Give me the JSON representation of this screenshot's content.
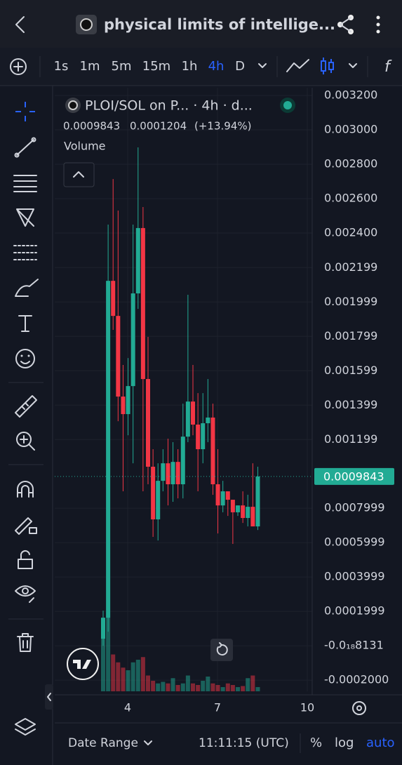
{
  "ui": {
    "title": "physical limits of intellige...",
    "timeframes": [
      "1s",
      "1m",
      "5m",
      "15m",
      "1h",
      "4h",
      "D"
    ],
    "active_timeframe_index": 5,
    "fx": "f",
    "date_range": "Date Range",
    "clock": "11:11:15 (UTC)",
    "percent": "%",
    "log": "log",
    "auto": "auto"
  },
  "chart_data": {
    "type": "candlestick",
    "symbol": "PLOI/SOL on P... · 4h · d...",
    "last_price": 0.0009843,
    "change": 0.0001204,
    "change_label": "(+13.94%)",
    "volume_label": "Volume",
    "up_color": "#22ab94",
    "down_color": "#f23645",
    "x": [
      3.18,
      3.347,
      3.513,
      3.68,
      3.847,
      4.013,
      4.18,
      4.347,
      4.513,
      4.68,
      4.847,
      5.013,
      5.18,
      5.347,
      5.513,
      5.68,
      5.847,
      6.013,
      6.18,
      6.347,
      6.513,
      6.68,
      6.847,
      7.013,
      7.18,
      7.347,
      7.513,
      7.68,
      7.847,
      8.013,
      8.18,
      8.347
    ],
    "open": [
      4.1e-05,
      0.000163,
      0.002122,
      0.001918,
      0.001449,
      0.001347,
      0.00151,
      0.002049,
      0.002429,
      0.001551,
      0.001041,
      0.000735,
      0.000959,
      0.001061,
      0.000939,
      0.001069,
      0.000939,
      0.001216,
      0.00142,
      0.001286,
      0.001143,
      0.001294,
      0.001327,
      0.000939,
      0.000816,
      0.000898,
      0.000849,
      0.000776,
      0.000816,
      0.000743,
      0.000808,
      0.000694
    ],
    "close": [
      0.000163,
      0.002122,
      0.001918,
      0.001449,
      0.001347,
      0.00151,
      0.002049,
      0.002429,
      0.001551,
      0.001041,
      0.000735,
      0.000959,
      0.001061,
      0.000939,
      0.001069,
      0.000939,
      0.001216,
      0.00142,
      0.001286,
      0.001143,
      0.001294,
      0.001327,
      0.000939,
      0.000816,
      0.000898,
      0.000849,
      0.000776,
      0.000816,
      0.000743,
      0.000808,
      0.000694,
      0.0009843
    ],
    "high": [
      0.000204,
      0.002449,
      0.002714,
      0.002531,
      0.001633,
      0.001673,
      0.002449,
      0.002898,
      0.002551,
      0.001796,
      0.001143,
      0.001061,
      0.001143,
      0.001204,
      0.001184,
      0.001143,
      0.001408,
      0.002041,
      0.001633,
      0.001469,
      0.001469,
      0.001551,
      0.001408,
      0.001143,
      0.000959,
      0.000898,
      0.000849,
      0.000816,
      0.000898,
      0.000878,
      0.001061,
      0.001041
    ],
    "low": [
      0.0,
      8.2e-05,
      0.001837,
      0.001306,
      0.000898,
      0.001224,
      0.001061,
      0.001959,
      0.000898,
      0.000939,
      0.000633,
      0.000612,
      0.000898,
      0.000816,
      0.000837,
      0.000857,
      0.000857,
      0.001184,
      0.001224,
      0.000898,
      0.001061,
      0.001184,
      0.000878,
      0.000653,
      0.000776,
      0.000755,
      0.000592,
      0.000755,
      0.000714,
      0.000694,
      0.000694,
      0.000673
    ],
    "volume": [
      100,
      140,
      70,
      55,
      45,
      40,
      55,
      60,
      65,
      30,
      20,
      15,
      18,
      15,
      25,
      12,
      15,
      30,
      15,
      12,
      20,
      28,
      15,
      12,
      8,
      15,
      12,
      8,
      10,
      25,
      30,
      8
    ],
    "xlim": [
      1.563,
      10.164
    ],
    "xticks": [
      4,
      7,
      10
    ],
    "ylim": [
      -0.000265,
      0.003245
    ],
    "yticks": [
      {
        "value": 0.0032,
        "label": "0.003200"
      },
      {
        "value": 0.003,
        "label": "0.003000"
      },
      {
        "value": 0.0028,
        "label": "0.002800"
      },
      {
        "value": 0.0026,
        "label": "0.002600"
      },
      {
        "value": 0.0024,
        "label": "0.002400"
      },
      {
        "value": 0.002199,
        "label": "0.002199"
      },
      {
        "value": 0.001999,
        "label": "0.001999"
      },
      {
        "value": 0.001799,
        "label": "0.001799"
      },
      {
        "value": 0.001599,
        "label": "0.001599"
      },
      {
        "value": 0.001399,
        "label": "0.001399"
      },
      {
        "value": 0.001199,
        "label": "0.001199"
      },
      {
        "value": 0.0007999,
        "label": "0.0007999"
      },
      {
        "value": 0.0005999,
        "label": "0.0005999"
      },
      {
        "value": 0.0003999,
        "label": "0.0003999"
      },
      {
        "value": 0.0001999,
        "label": "0.0001999"
      },
      {
        "value": -8.131e-19,
        "label": "-0.0₁₈8131"
      },
      {
        "value": -0.0002,
        "label": "-0.0002000"
      }
    ],
    "grid": true
  }
}
